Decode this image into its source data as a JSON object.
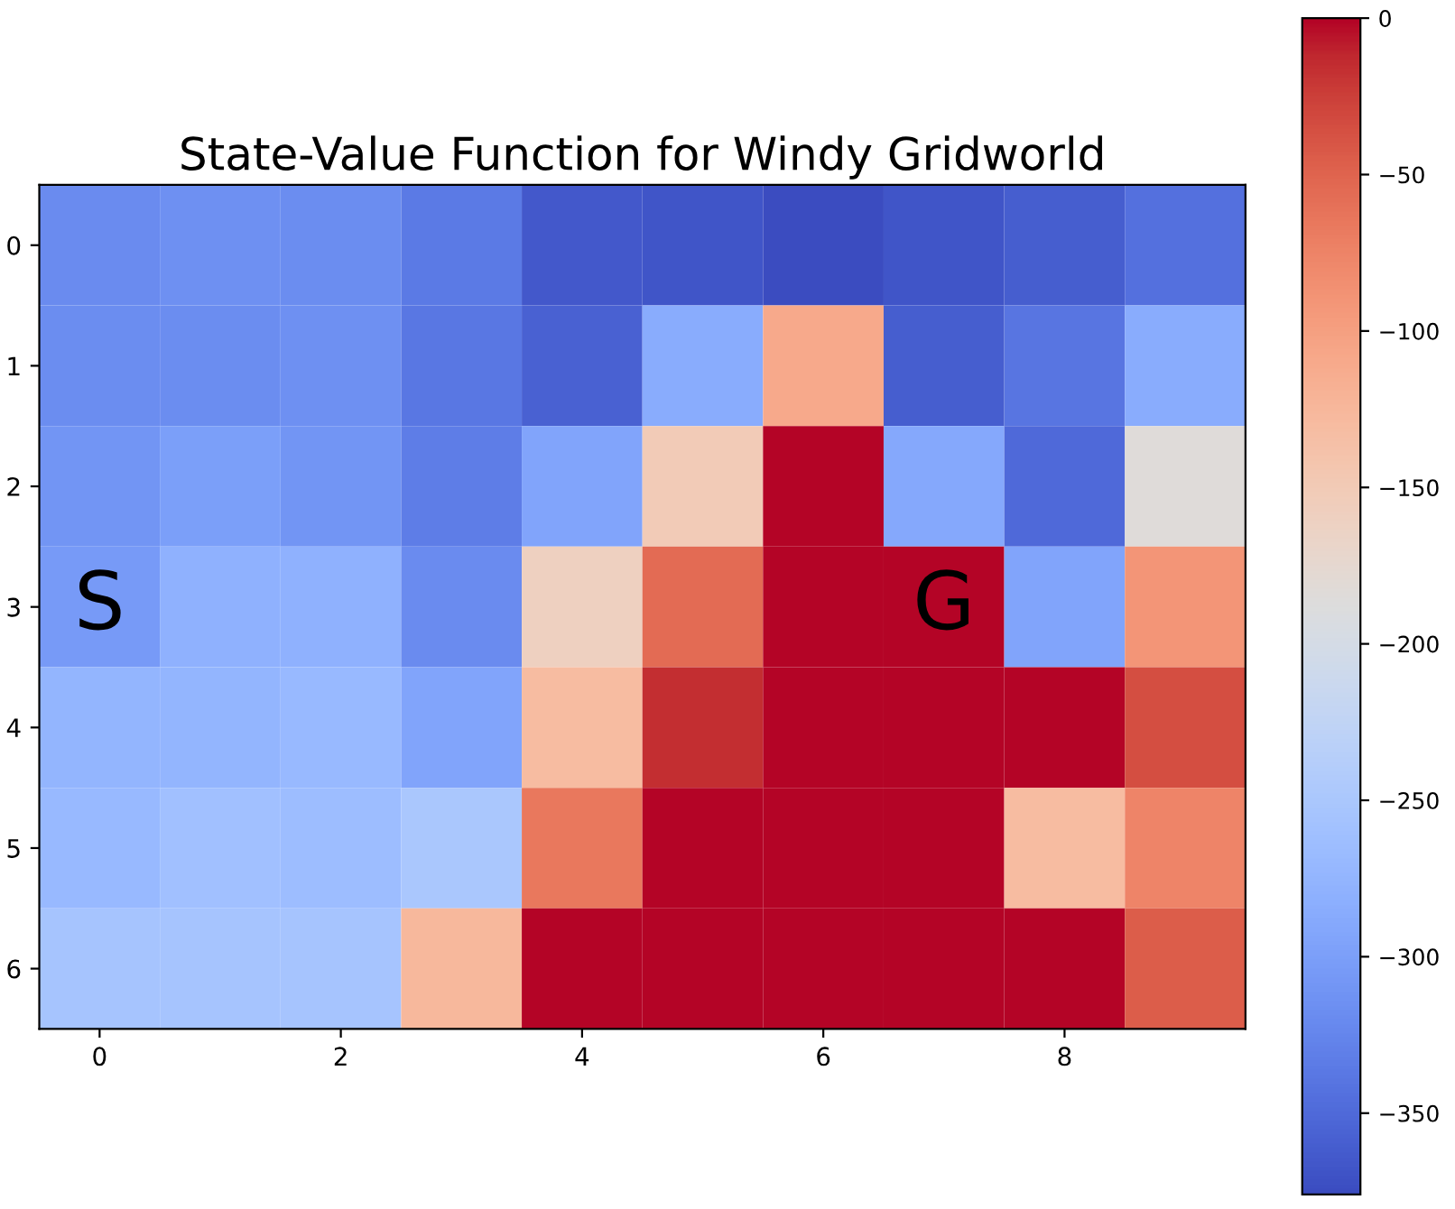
{
  "chart_data": {
    "type": "heatmap",
    "title": "State-Value Function for Windy Gridworld",
    "x": [
      0,
      1,
      2,
      3,
      4,
      5,
      6,
      7,
      8,
      9
    ],
    "xlim": [
      -0.5,
      9.5
    ],
    "xticks": [
      0,
      2,
      4,
      6,
      8
    ],
    "y_categories": [
      "0",
      "1",
      "2",
      "3",
      "4",
      "5",
      "6"
    ],
    "cells": [
      [
        -320,
        -315,
        -318,
        -335,
        -365,
        -368,
        -376,
        -368,
        -360,
        -345
      ],
      [
        -318,
        -318,
        -315,
        -338,
        -358,
        -285,
        -110,
        -360,
        -340,
        -285
      ],
      [
        -310,
        -300,
        -310,
        -332,
        -295,
        -150,
        0,
        -290,
        -350,
        -185
      ],
      [
        -305,
        -280,
        -280,
        -320,
        -160,
        -55,
        0,
        0,
        -295,
        -90
      ],
      [
        -275,
        -275,
        -270,
        -295,
        -130,
        -15,
        0,
        0,
        0,
        -35
      ],
      [
        -270,
        -260,
        -265,
        -250,
        -65,
        0,
        0,
        0,
        -130,
        -75
      ],
      [
        -255,
        -255,
        -255,
        -125,
        0,
        0,
        0,
        0,
        0,
        -45
      ]
    ],
    "clim": [
      -376,
      0
    ],
    "cticks": [
      0,
      -50,
      -100,
      -150,
      -200,
      -250,
      -300,
      -350
    ],
    "annotations": [
      "S",
      "G"
    ]
  }
}
